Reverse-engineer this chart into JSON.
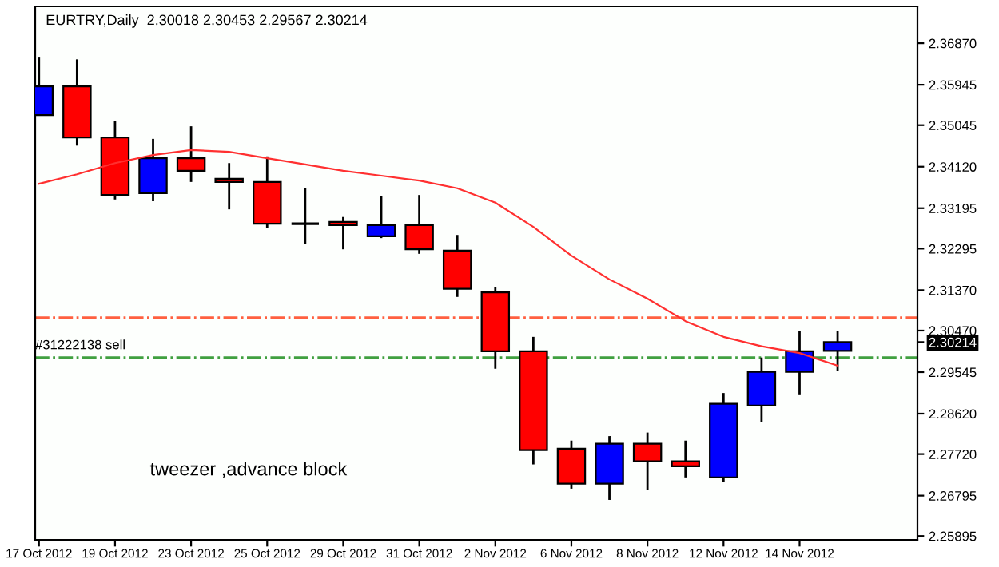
{
  "chart_data": {
    "type": "candlestick",
    "title": "EURTRY,Daily  2.30018 2.30453 2.29567 2.30214",
    "categories": [
      "17 Oct 2012",
      null,
      "19 Oct 2012",
      null,
      "23 Oct 2012",
      null,
      "25 Oct 2012",
      null,
      "29 Oct 2012",
      null,
      "31 Oct 2012",
      null,
      "2 Nov 2012",
      null,
      "6 Nov 2012",
      null,
      "8 Nov 2012",
      null,
      "12 Nov 2012",
      null,
      "14 Nov 2012",
      null
    ],
    "ohlc": [
      [
        2.3527,
        2.3655,
        2.3527,
        2.3591
      ],
      [
        2.3591,
        2.3651,
        2.3459,
        2.3477
      ],
      [
        2.3477,
        2.3513,
        2.3339,
        2.3349
      ],
      [
        2.3353,
        2.3474,
        2.3335,
        2.3431
      ],
      [
        2.3431,
        2.3502,
        2.3378,
        2.3403
      ],
      [
        2.3385,
        2.342,
        2.3317,
        2.3378
      ],
      [
        2.3378,
        2.3435,
        2.3275,
        2.3285
      ],
      [
        2.3285,
        2.3364,
        2.3239,
        2.3285
      ],
      [
        2.3289,
        2.33,
        2.3228,
        2.3282
      ],
      [
        2.3257,
        2.3346,
        2.3253,
        2.3282
      ],
      [
        2.3282,
        2.3349,
        2.3218,
        2.3228
      ],
      [
        2.3225,
        2.326,
        2.3122,
        2.314
      ],
      [
        2.3132,
        2.3143,
        2.2962,
        2.3001
      ],
      [
        2.3001,
        2.3033,
        2.2749,
        2.2781
      ],
      [
        2.2784,
        2.2802,
        2.2695,
        2.2706
      ],
      [
        2.2706,
        2.2812,
        2.267,
        2.2795
      ],
      [
        2.2795,
        2.282,
        2.2692,
        2.2756
      ],
      [
        2.2756,
        2.2802,
        2.272,
        2.2745
      ],
      [
        2.272,
        2.2908,
        2.2709,
        2.2884
      ],
      [
        2.288,
        2.2987,
        2.2844,
        2.2955
      ],
      [
        2.2955,
        2.3047,
        2.2905,
        2.3001
      ],
      [
        2.30018,
        2.30453,
        2.29567,
        2.30214
      ]
    ],
    "colors": [
      "#0000ff",
      "#ff0000",
      "#ff0000",
      "#0000ff",
      "#ff0000",
      "#ff0000",
      "#ff0000",
      "#000000",
      "#ff0000",
      "#0000ff",
      "#ff0000",
      "#ff0000",
      "#ff0000",
      "#ff0000",
      "#ff0000",
      "#0000ff",
      "#ff0000",
      "#ff0000",
      "#0000ff",
      "#0000ff",
      "#0000ff",
      "#0000ff"
    ],
    "series": [
      {
        "type": "line",
        "color": "#ff3030",
        "values": [
          2.3374,
          2.3395,
          2.342,
          2.3438,
          2.3449,
          2.3445,
          2.3431,
          2.3417,
          2.3403,
          2.3392,
          2.3381,
          2.3364,
          2.3332,
          2.3278,
          2.3214,
          2.3161,
          2.3118,
          2.3068,
          2.3033,
          2.3012,
          2.2997,
          2.2969
        ]
      }
    ],
    "ylim": [
      2.2581,
      2.3769
    ],
    "yticks": [
      {
        "value": 2.25895,
        "label": "2.25895"
      },
      {
        "value": 2.26795,
        "label": "2.26795"
      },
      {
        "value": 2.2772,
        "label": "2.27720"
      },
      {
        "value": 2.2862,
        "label": "2.28620"
      },
      {
        "value": 2.29545,
        "label": "2.29545"
      },
      {
        "value": 2.3047,
        "label": "2.30470"
      },
      {
        "value": 2.3137,
        "label": "2.31370"
      },
      {
        "value": 2.32295,
        "label": "2.32295"
      },
      {
        "value": 2.33195,
        "label": "2.33195"
      },
      {
        "value": 2.3412,
        "label": "2.34120"
      },
      {
        "value": 2.35045,
        "label": "2.35045"
      },
      {
        "value": 2.35945,
        "label": "2.35945"
      },
      {
        "value": 2.3687,
        "label": "2.36870"
      },
      {
        "value": 2.30214,
        "label": "2.30214"
      }
    ],
    "ref_lines": [
      {
        "axis": "y",
        "value": 2.3076,
        "color": "#ff6040",
        "line_style": "dashdot"
      },
      {
        "axis": "y",
        "value": 2.2987,
        "label": "#31222138 sell",
        "color": "#40a040",
        "line_style": "dashdot"
      }
    ],
    "annotations": [
      "tweezer ,advance block"
    ],
    "grid": false
  }
}
